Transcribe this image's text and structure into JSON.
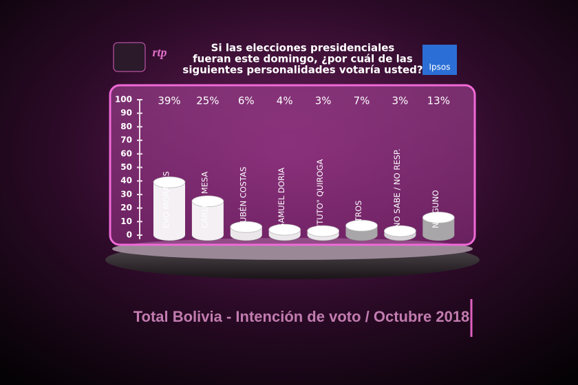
{
  "chart_data": {
    "type": "bar",
    "title": [
      "Si las elecciones presidenciales",
      "fueran este domingo, ¿por cuál de las",
      "siguientes personalidades votaría usted?"
    ],
    "logos": {
      "left": "rtp",
      "right": "Ipsos"
    },
    "footer": "Total Bolivia - Intención de voto / Octubre 2018",
    "categories": [
      "EVO MORALES",
      "CARLOS MESA",
      "RUBÉN COSTAS",
      "SAMUEL DORIA",
      "\"TUTO\" QUIROGA",
      "OTROS",
      "NO SABE / NO RESP.",
      "NINGUNO"
    ],
    "values": [
      39,
      25,
      6,
      4,
      3,
      7,
      3,
      13
    ],
    "value_labels": [
      "39%",
      "25%",
      "6%",
      "4%",
      "3%",
      "7%",
      "3%",
      "13%"
    ],
    "colors": [
      "#f4f0f4",
      "#f4f0f4",
      "#ebe7eb",
      "#ebe7eb",
      "#ebe7eb",
      "#a8a6a8",
      "#d4d0d4",
      "#a8a6a8"
    ],
    "ylim": [
      0,
      100
    ],
    "yticks": [
      0,
      10,
      20,
      30,
      40,
      50,
      60,
      70,
      80,
      90,
      100
    ]
  }
}
